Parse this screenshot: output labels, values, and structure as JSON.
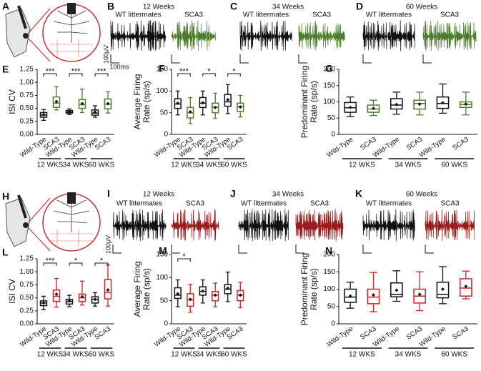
{
  "figure": {
    "diagrams": [
      {
        "panel": "A"
      },
      {
        "panel": "H"
      }
    ],
    "traces": [
      {
        "panel": "B",
        "title": "12 Weeks",
        "left": "WT littermates",
        "right": "SCA3",
        "color": "#4e7d2e",
        "scale_v": "100μV",
        "scale_t": "100ms"
      },
      {
        "panel": "C",
        "title": "34 Weeks",
        "left": "WT littermates",
        "right": "SCA3",
        "color": "#4e7d2e"
      },
      {
        "panel": "D",
        "title": "60 Weeks",
        "left": "WT littermates",
        "right": "SCA3",
        "color": "#4e7d2e"
      },
      {
        "panel": "I",
        "title": "12 Weeks",
        "left": "WT littermates",
        "right": "SCA3",
        "color": "#9b1c1c",
        "scale_v": "100μV"
      },
      {
        "panel": "J",
        "title": "34 Weeks",
        "left": "WT littermates",
        "right": "SCA3",
        "color": "#9b1c1c"
      },
      {
        "panel": "K",
        "title": "60 Weeks",
        "left": "WT littermates",
        "right": "SCA3",
        "color": "#9b1c1c"
      }
    ]
  },
  "chart_data": [
    {
      "type": "box",
      "panel": "E",
      "ylabel": [
        "ISI CV"
      ],
      "categories": [
        "Wild-Type",
        "SCA3",
        "Wild-Type",
        "SCA3",
        "Wild-Type",
        "SCA3"
      ],
      "groups": [
        "12 WKS",
        "34 WKS",
        "60 WKS"
      ],
      "significance": [
        "***",
        "***",
        "***"
      ],
      "colors": [
        "#111111",
        "#4e7d2e"
      ],
      "boxes": [
        {
          "low": 0.27,
          "q1": 0.33,
          "median": 0.37,
          "q3": 0.42,
          "high": 0.48,
          "mean": 0.38
        },
        {
          "low": 0.47,
          "q1": 0.52,
          "median": 0.6,
          "q3": 0.72,
          "high": 0.92,
          "mean": 0.63
        },
        {
          "low": 0.38,
          "q1": 0.41,
          "median": 0.43,
          "q3": 0.46,
          "high": 0.49,
          "mean": 0.44
        },
        {
          "low": 0.42,
          "q1": 0.5,
          "median": 0.57,
          "q3": 0.67,
          "high": 0.87,
          "mean": 0.59
        },
        {
          "low": 0.33,
          "q1": 0.37,
          "median": 0.41,
          "q3": 0.47,
          "high": 0.55,
          "mean": 0.43
        },
        {
          "low": 0.41,
          "q1": 0.49,
          "median": 0.58,
          "q3": 0.68,
          "high": 0.82,
          "mean": 0.59
        }
      ],
      "ylim": [
        0,
        1.25
      ],
      "yticks": [
        {
          "value": 0,
          "label": "0.00"
        },
        {
          "value": 0.25,
          "label": "0.25"
        },
        {
          "value": 0.5,
          "label": "0.50"
        },
        {
          "value": 0.75,
          "label": "0.75"
        },
        {
          "value": 1,
          "label": "1.00"
        },
        {
          "value": 1.25,
          "label": "1.25"
        }
      ]
    },
    {
      "type": "box",
      "panel": "F",
      "ylabel": [
        "Average Firing",
        "Rate (sp/s)"
      ],
      "categories": [
        "Wild-Type",
        "SCA3",
        "Wild-Type",
        "SCA3",
        "Wild-Type",
        "SCA3"
      ],
      "groups": [
        "12 WKS",
        "34 WKS",
        "60 WKS"
      ],
      "significance": [
        "***",
        "*",
        "*"
      ],
      "colors": [
        "#111111",
        "#4e7d2e"
      ],
      "boxes": [
        {
          "low": 45,
          "q1": 60,
          "median": 70,
          "q3": 82,
          "high": 100,
          "mean": 72
        },
        {
          "low": 25,
          "q1": 38,
          "median": 50,
          "q3": 62,
          "high": 85,
          "mean": 52
        },
        {
          "low": 45,
          "q1": 62,
          "median": 72,
          "q3": 85,
          "high": 100,
          "mean": 73
        },
        {
          "low": 37,
          "q1": 50,
          "median": 63,
          "q3": 72,
          "high": 95,
          "mean": 62
        },
        {
          "low": 48,
          "q1": 65,
          "median": 75,
          "q3": 92,
          "high": 115,
          "mean": 80
        },
        {
          "low": 40,
          "q1": 53,
          "median": 64,
          "q3": 72,
          "high": 90,
          "mean": 63
        }
      ],
      "ylim": [
        0,
        150
      ],
      "yticks": [
        0,
        50,
        100,
        150
      ]
    },
    {
      "type": "box",
      "panel": "G",
      "ylabel": [
        "Predominant Firing",
        "Rate (sp/s)"
      ],
      "categories": [
        "Wild-Type",
        "SCA3",
        "Wild-Type",
        "SCA3",
        "Wild-Type",
        "SCA3"
      ],
      "groups": [
        "12 WKS",
        "34 WKS",
        "60 WKS"
      ],
      "colors": [
        "#111111",
        "#4e7d2e"
      ],
      "boxes": [
        {
          "low": 55,
          "q1": 68,
          "median": 82,
          "q3": 98,
          "high": 115,
          "mean": 83
        },
        {
          "low": 58,
          "q1": 68,
          "median": 78,
          "q3": 90,
          "high": 105,
          "mean": 80
        },
        {
          "low": 62,
          "q1": 78,
          "median": 90,
          "q3": 110,
          "high": 130,
          "mean": 92
        },
        {
          "low": 60,
          "q1": 78,
          "median": 95,
          "q3": 105,
          "high": 130,
          "mean": 93
        },
        {
          "low": 65,
          "q1": 80,
          "median": 95,
          "q3": 115,
          "high": 155,
          "mean": 97
        },
        {
          "low": 60,
          "q1": 83,
          "median": 92,
          "q3": 100,
          "high": 130,
          "mean": 93
        }
      ],
      "ylim": [
        0,
        200
      ],
      "yticks": [
        0,
        50,
        100,
        150,
        200
      ]
    },
    {
      "type": "box",
      "panel": "L",
      "ylabel": [
        "ISI CV"
      ],
      "categories": [
        "Wild-Type",
        "SCA3",
        "Wild-Type",
        "SCA3",
        "Wild-Type",
        "SCA3"
      ],
      "groups": [
        "12 WKS",
        "34 WKS",
        "60 WKS"
      ],
      "significance": [
        "***",
        "*",
        "*"
      ],
      "colors": [
        "#111111",
        "#d42020"
      ],
      "boxes": [
        {
          "low": 0.27,
          "q1": 0.35,
          "median": 0.4,
          "q3": 0.44,
          "high": 0.53,
          "mean": 0.4
        },
        {
          "low": 0.32,
          "q1": 0.43,
          "median": 0.53,
          "q3": 0.65,
          "high": 0.87,
          "mean": 0.57
        },
        {
          "low": 0.33,
          "q1": 0.38,
          "median": 0.43,
          "q3": 0.47,
          "high": 0.55,
          "mean": 0.44
        },
        {
          "low": 0.36,
          "q1": 0.43,
          "median": 0.5,
          "q3": 0.57,
          "high": 0.82,
          "mean": 0.52
        },
        {
          "low": 0.34,
          "q1": 0.4,
          "median": 0.47,
          "q3": 0.52,
          "high": 0.6,
          "mean": 0.47
        },
        {
          "low": 0.34,
          "q1": 0.48,
          "median": 0.6,
          "q3": 0.85,
          "high": 1.13,
          "mean": 0.65
        }
      ],
      "ylim": [
        0,
        1.25
      ],
      "yticks": [
        {
          "value": 0,
          "label": "0.00"
        },
        {
          "value": 0.25,
          "label": "0.25"
        },
        {
          "value": 0.5,
          "label": "0.50"
        },
        {
          "value": 0.75,
          "label": "0.75"
        },
        {
          "value": 1,
          "label": "1.00"
        },
        {
          "value": 1.25,
          "label": "1.25"
        }
      ]
    },
    {
      "type": "box",
      "panel": "M",
      "ylabel": [
        "Average Firing",
        "Rate (sp/s)"
      ],
      "categories": [
        "Wild-Type",
        "SCA3",
        "Wild-Type",
        "SCA3",
        "Wild-Type",
        "SCA3"
      ],
      "groups": [
        "12 WKS",
        "34 WKS",
        "60 WKS"
      ],
      "significance": [
        "*",
        null,
        null
      ],
      "colors": [
        "#111111",
        "#d42020"
      ],
      "boxes": [
        {
          "low": 37,
          "q1": 55,
          "median": 62,
          "q3": 78,
          "high": 95,
          "mean": 65
        },
        {
          "low": 25,
          "q1": 38,
          "median": 52,
          "q3": 65,
          "high": 85,
          "mean": 53
        },
        {
          "low": 45,
          "q1": 62,
          "median": 70,
          "q3": 80,
          "high": 95,
          "mean": 71
        },
        {
          "low": 37,
          "q1": 50,
          "median": 62,
          "q3": 70,
          "high": 88,
          "mean": 62
        },
        {
          "low": 48,
          "q1": 65,
          "median": 75,
          "q3": 85,
          "high": 112,
          "mean": 77
        },
        {
          "low": 35,
          "q1": 50,
          "median": 62,
          "q3": 72,
          "high": 90,
          "mean": 62
        }
      ],
      "ylim": [
        0,
        150
      ],
      "yticks": [
        0,
        50,
        100,
        150
      ]
    },
    {
      "type": "box",
      "panel": "N",
      "ylabel": [
        "Predominant Firing",
        "Rate (sp/s)"
      ],
      "categories": [
        "Wild-Type",
        "SCA3",
        "Wild-Type",
        "SCA3",
        "Wild-Type",
        "SCA3"
      ],
      "groups": [
        "12 WKS",
        "34 WKS",
        "60 WKS"
      ],
      "colors": [
        "#111111",
        "#d42020"
      ],
      "boxes": [
        {
          "low": 45,
          "q1": 62,
          "median": 77,
          "q3": 100,
          "high": 120,
          "mean": 80
        },
        {
          "low": 35,
          "q1": 58,
          "median": 77,
          "q3": 100,
          "high": 148,
          "mean": 83
        },
        {
          "low": 65,
          "q1": 78,
          "median": 85,
          "q3": 118,
          "high": 153,
          "mean": 97
        },
        {
          "low": 38,
          "q1": 60,
          "median": 80,
          "q3": 100,
          "high": 150,
          "mean": 85
        },
        {
          "low": 58,
          "q1": 75,
          "median": 85,
          "q3": 120,
          "high": 165,
          "mean": 100
        },
        {
          "low": 72,
          "q1": 80,
          "median": 103,
          "q3": 130,
          "high": 152,
          "mean": 108
        }
      ],
      "ylim": [
        0,
        200
      ],
      "yticks": [
        0,
        50,
        100,
        150,
        200
      ]
    }
  ]
}
